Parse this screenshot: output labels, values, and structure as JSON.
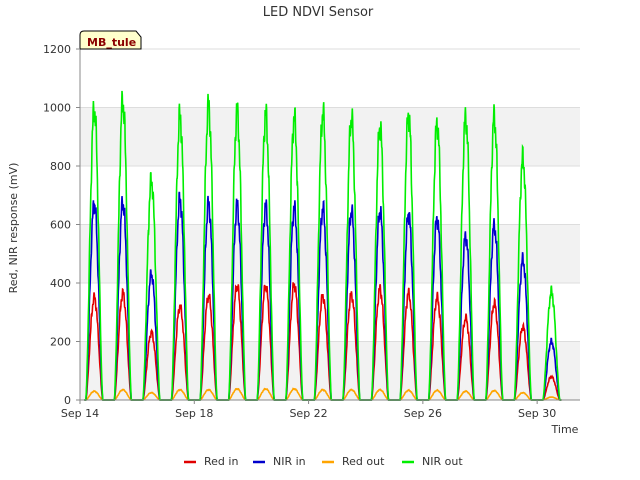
{
  "chart_data": {
    "type": "line",
    "title": "LED NDVI Sensor",
    "xlabel": "Time",
    "ylabel": "Red, NIR response (mV)",
    "badge": "MB_tule",
    "xlim": [
      14.0,
      31.5
    ],
    "ylim": [
      0,
      1200
    ],
    "yticks": [
      0,
      200,
      400,
      600,
      800,
      1000,
      1200
    ],
    "xticks": [
      {
        "value": 14,
        "label": "Sep 14"
      },
      {
        "value": 18,
        "label": "Sep 18"
      },
      {
        "value": 22,
        "label": "Sep 22"
      },
      {
        "value": 26,
        "label": "Sep 26"
      },
      {
        "value": 30,
        "label": "Sep 30"
      }
    ],
    "grid": true,
    "legend_position": "bottom",
    "days": [
      14.5,
      15.5,
      16.5,
      17.5,
      18.5,
      19.5,
      20.5,
      21.5,
      22.5,
      23.5,
      24.5,
      25.5,
      26.5,
      27.5,
      28.5,
      29.5,
      30.5
    ],
    "series": [
      {
        "name": "Red in",
        "color": "#e00000",
        "daily_peak": [
          350,
          365,
          230,
          320,
          355,
          390,
          390,
          395,
          355,
          360,
          380,
          365,
          350,
          280,
          330,
          250,
          80
        ]
      },
      {
        "name": "NIR in",
        "color": "#0000cc",
        "daily_peak": [
          670,
          675,
          430,
          685,
          670,
          665,
          660,
          655,
          655,
          645,
          645,
          635,
          620,
          560,
          595,
          480,
          200
        ]
      },
      {
        "name": "Red out",
        "color": "#ffa500",
        "daily_peak": [
          30,
          35,
          25,
          35,
          35,
          38,
          38,
          38,
          35,
          35,
          35,
          33,
          33,
          30,
          32,
          25,
          10
        ]
      },
      {
        "name": "NIR out",
        "color": "#00ee00",
        "daily_peak": [
          995,
          1020,
          750,
          970,
          1005,
          985,
          975,
          965,
          980,
          965,
          935,
          975,
          945,
          965,
          965,
          825,
          370
        ]
      }
    ]
  }
}
